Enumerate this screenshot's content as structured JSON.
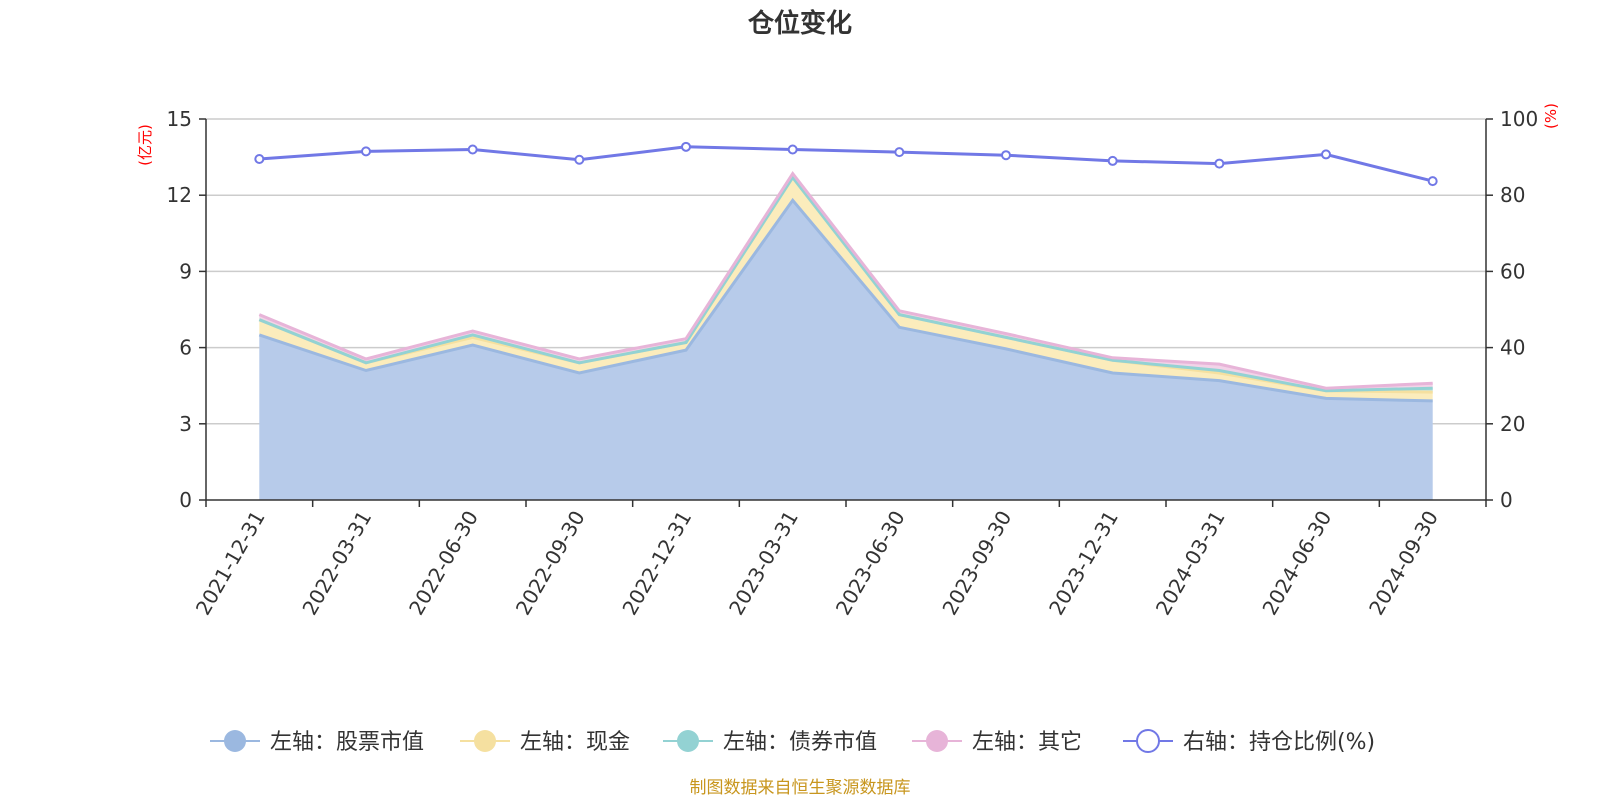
{
  "chart_data": {
    "type": "area",
    "title": "仓位变化",
    "left_axis": {
      "unit": "(亿元)",
      "ylim": [
        0,
        15
      ],
      "ticks": [
        "0",
        "3",
        "6",
        "9",
        "12",
        "15"
      ]
    },
    "right_axis": {
      "unit": "(%)",
      "ylim": [
        0,
        100
      ],
      "ticks": [
        "0",
        "20",
        "40",
        "60",
        "80",
        "100"
      ]
    },
    "categories": [
      "2021-12-31",
      "2022-03-31",
      "2022-06-30",
      "2022-09-30",
      "2022-12-31",
      "2023-03-31",
      "2023-06-30",
      "2023-09-30",
      "2023-12-31",
      "2024-03-31",
      "2024-06-30",
      "2024-09-30"
    ],
    "series": [
      {
        "name": "左轴：股票市值",
        "axis": "left",
        "stack": true,
        "color": "#9bb8e0",
        "fill": "#b7cbea",
        "values": [
          6.5,
          5.1,
          6.1,
          5.0,
          5.9,
          11.8,
          6.8,
          5.95,
          5.0,
          4.7,
          4.0,
          3.9
        ]
      },
      {
        "name": "左轴：现金",
        "axis": "left",
        "stack": true,
        "color": "#f5e0a0",
        "fill": "#fbecbc",
        "values": [
          0.6,
          0.3,
          0.3,
          0.4,
          0.3,
          0.9,
          0.5,
          0.45,
          0.5,
          0.3,
          0.3,
          0.35
        ]
      },
      {
        "name": "左轴：债券市值",
        "axis": "left",
        "stack": true,
        "color": "#93d2d3",
        "fill": "#bfe3e2",
        "values": [
          0.0,
          0.0,
          0.1,
          0.0,
          0.0,
          0.0,
          0.0,
          0.0,
          0.0,
          0.1,
          0.0,
          0.15
        ]
      },
      {
        "name": "左轴：其它",
        "axis": "left",
        "stack": true,
        "color": "#e7b4d8",
        "fill": "#f2d3e8",
        "values": [
          0.2,
          0.15,
          0.15,
          0.15,
          0.15,
          0.15,
          0.15,
          0.15,
          0.1,
          0.25,
          0.1,
          0.2
        ]
      },
      {
        "name": "右轴：持仓比例(%)",
        "axis": "right",
        "stack": false,
        "color": "#7178e6",
        "values": [
          89.5,
          91.5,
          92.0,
          89.3,
          92.7,
          92.0,
          91.3,
          90.5,
          89.0,
          88.3,
          90.7,
          83.7
        ]
      }
    ],
    "grid": true,
    "legend": "bottom",
    "source": "制图数据来自恒生聚源数据库"
  }
}
